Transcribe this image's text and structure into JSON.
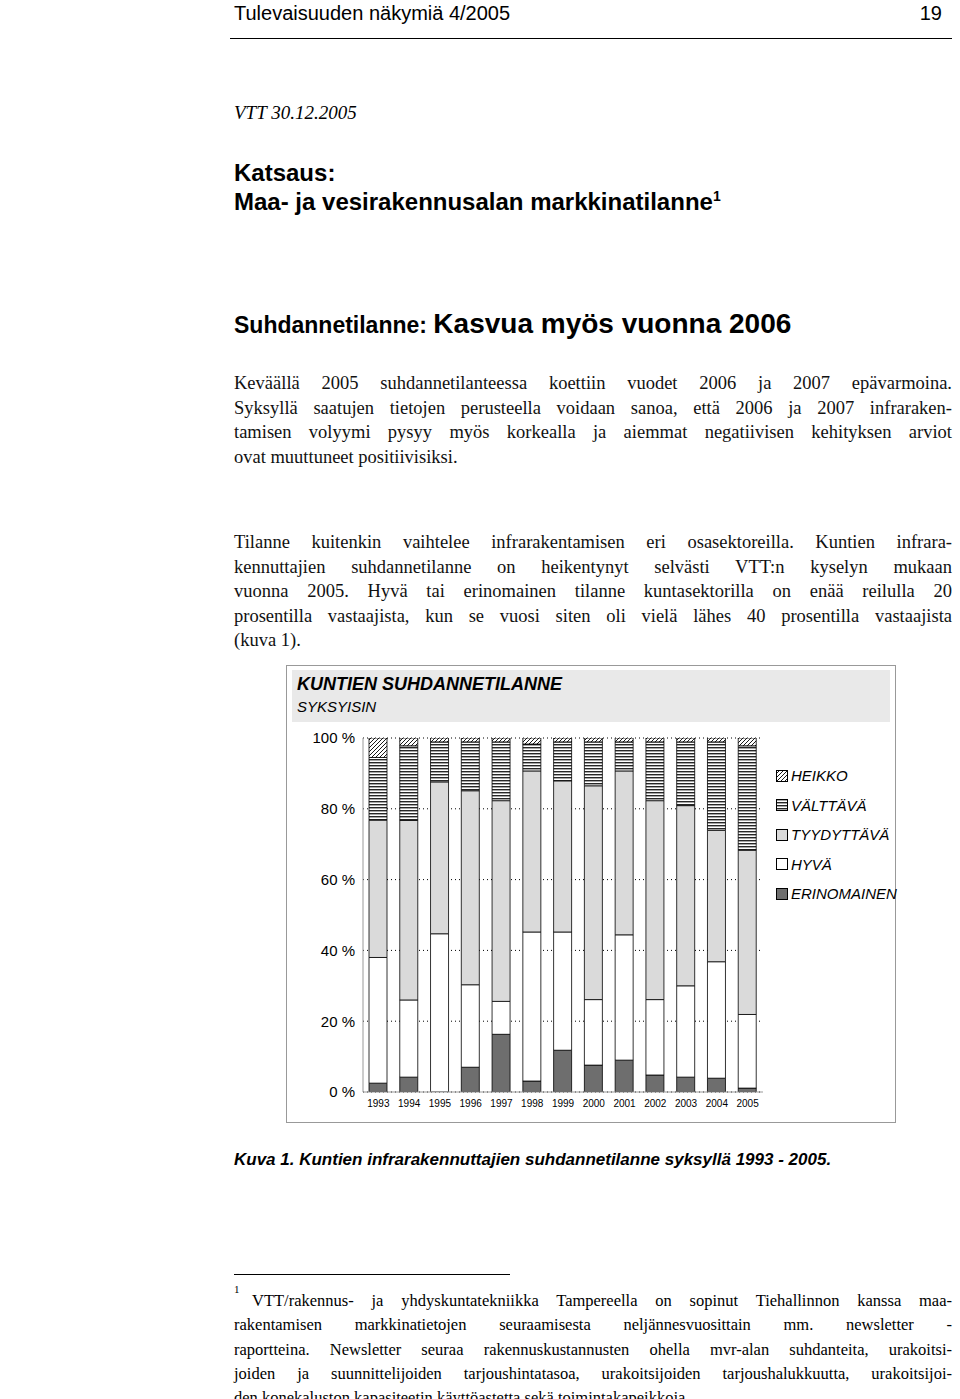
{
  "document": {
    "header": {
      "left": "Tulevaisuuden näkymiä 4/2005",
      "page": "19"
    },
    "date": "VTT 30.12.2005",
    "kicker": "Katsaus:",
    "title": "Maa- ja vesirakennusalan markkinatilanne",
    "title_note": "1",
    "section": {
      "label": "Suhdannetilanne:",
      "title": "Kasvua myös vuonna 2006"
    },
    "paragraphs": [
      [
        "Keväällä 2005 suhdannetilanteessa koettiin vuodet 2006 ja 2007 epävarmoina.",
        "Syksyllä saatujen tietojen perusteella voidaan sanoa, että 2006 ja 2007 infraraken-",
        "tamisen volyymi pysyy myös korkealla ja aiemmat negatiivisen kehityksen arviot",
        "ovat muuttuneet positiivisiksi."
      ],
      [
        "Tilanne kuitenkin vaihtelee infrarakentamisen eri osasektoreilla. Kuntien infrara-",
        "kennuttajien suhdannetilanne on heikentynyt selvästi VTT:n kyselyn mukaan",
        "vuonna 2005. Hyvä tai erinomainen tilanne kuntasektorilla on enää reilulla 20",
        "prosentilla vastaajista, kun se vuosi siten oli vielä lähes 40 prosentilla vastaajista",
        "(kuva 1)."
      ]
    ],
    "caption": "Kuva 1. Kuntien infrarakennuttajien suhdannetilanne syksyllä 1993 - 2005.",
    "footnote": {
      "mark": "1",
      "lines": [
        "VTT/rakennus- ja yhdyskuntatekniikka Tampereella on sopinut Tiehallinnon kanssa maa-",
        "rakentamisen markkinatietojen seuraamisesta neljännesvuosittain mm. newsletter -",
        "raportteina. Newsletter seuraa rakennuskustannusten ohella mvr-alan suhdanteita, urakoitsi-",
        "joiden ja suunnittelijoiden tarjoushintatasoa, urakoitsijoiden tarjoushalukkuutta, urakoitsijoi-",
        "den konekaluston kapasiteetin käyttöastetta sekä toimintakapeikkoja."
      ]
    }
  },
  "chart_data": {
    "type": "bar",
    "stacked": true,
    "title": "KUNTIEN SUHDANNETILANNE",
    "subtitle": "SYKSYISIN",
    "categories": [
      "1993",
      "1994",
      "1995",
      "1996",
      "1997",
      "1998",
      "1999",
      "2000",
      "2001",
      "2002",
      "2003",
      "2004",
      "2005"
    ],
    "series": [
      {
        "name": "ERINOMAINEN",
        "color": "#6e6e6e",
        "values": [
          2.5,
          4.2,
          0,
          7,
          16.3,
          3.1,
          11.8,
          7.6,
          9,
          4.8,
          4.2,
          3.9,
          1.1
        ]
      },
      {
        "name": "HYVÄ",
        "color": "#ffffff",
        "values": [
          35.5,
          21.8,
          44.7,
          23.3,
          9.3,
          42.1,
          33.4,
          18.5,
          35.4,
          21.3,
          25.8,
          32.9,
          20.8
        ]
      },
      {
        "name": "TYYDYTTÄVÄ",
        "color": "#dadada",
        "values": [
          38.8,
          50.7,
          42.9,
          54.8,
          56.7,
          45.5,
          42.7,
          60.4,
          46.3,
          56.2,
          50.9,
          37.1,
          46.4
        ]
      },
      {
        "name": "VÄLTTÄVÄ",
        "color": "#000000",
        "values": [
          17.7,
          21.1,
          11.3,
          13.8,
          16.6,
          7.6,
          11,
          12.4,
          8.2,
          16.6,
          18,
          25,
          29.5
        ]
      },
      {
        "name": "HEIKKO",
        "color": "#000000",
        "values": [
          5.5,
          2.2,
          1.1,
          1.1,
          1.1,
          1.7,
          1.1,
          1.1,
          1.1,
          1.1,
          1.1,
          1.1,
          2.2
        ]
      }
    ],
    "ylim": [
      0,
      100
    ],
    "yticks": [
      {
        "value": 0,
        "label": "0 %"
      },
      {
        "value": 20,
        "label": "20 %"
      },
      {
        "value": 40,
        "label": "40 %"
      },
      {
        "value": 60,
        "label": "60 %"
      },
      {
        "value": 80,
        "label": "80 %"
      },
      {
        "value": 100,
        "label": "100 %"
      }
    ],
    "grid": true,
    "legend": "right"
  }
}
